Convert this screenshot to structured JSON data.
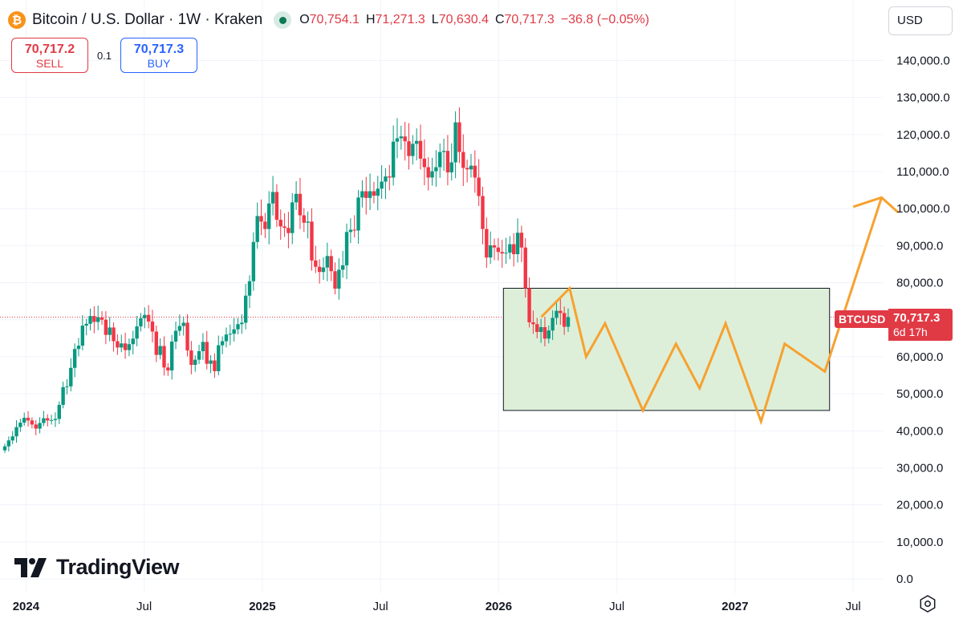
{
  "header": {
    "symbol_title": "Bitcoin / U.S. Dollar · 1W · Kraken",
    "btc_glyph": "₿",
    "ohlc": [
      {
        "label": "O",
        "value": "70,754.1"
      },
      {
        "label": "H",
        "value": "71,271.3"
      },
      {
        "label": "L",
        "value": "70,630.4"
      },
      {
        "label": "C",
        "value": "70,717.3"
      },
      {
        "label": "",
        "value": "−36.8 (−0.05%)"
      }
    ]
  },
  "trade": {
    "sell_price": "70,717.2",
    "sell_label": "SELL",
    "spread": "0.1",
    "buy_price": "70,717.3",
    "buy_label": "BUY"
  },
  "currency": "USD",
  "price_tag": {
    "symbol": "BTCUSD",
    "price": "70,717.3",
    "countdown": "6d 17h"
  },
  "branding": {
    "logo_text": "TradingView"
  },
  "colors": {
    "up": "#089981",
    "down": "#f23645",
    "projection": "#f7a12f",
    "range_box_fill": "#ddefd9",
    "last_price_line": "#e03a45"
  },
  "chart_data": {
    "type": "candlestick",
    "interval": "1W",
    "ylim": [
      0,
      145000
    ],
    "y_ticks": [
      "0.0",
      "10,000.0",
      "20,000.0",
      "30,000.0",
      "40,000.0",
      "50,000.0",
      "60,000.0",
      "70,000.0",
      "80,000.0",
      "90,000.0",
      "100,000.0",
      "110,000.0",
      "120,000.0",
      "130,000.0",
      "140,000.0"
    ],
    "x_ticks": [
      {
        "label": "2024",
        "pos": 2024.0,
        "year": true
      },
      {
        "label": "Jul",
        "pos": 2024.5,
        "year": false
      },
      {
        "label": "2025",
        "pos": 2025.0,
        "year": true
      },
      {
        "label": "Jul",
        "pos": 2025.5,
        "year": false
      },
      {
        "label": "2026",
        "pos": 2026.0,
        "year": true
      },
      {
        "label": "Jul",
        "pos": 2026.5,
        "year": false
      },
      {
        "label": "2027",
        "pos": 2027.0,
        "year": true
      },
      {
        "label": "Jul",
        "pos": 2027.5,
        "year": false
      }
    ],
    "xlim": [
      2023.89,
      2027.625
    ],
    "last_price": 70717.3,
    "candle_closes": [
      35800,
      37400,
      38500,
      41000,
      42200,
      43500,
      42800,
      41700,
      40600,
      42100,
      43400,
      42800,
      42900,
      43200,
      47000,
      51800,
      52000,
      57000,
      62100,
      63000,
      68400,
      68900,
      71000,
      69400,
      70600,
      70000,
      65900,
      67900,
      64200,
      62500,
      63600,
      61800,
      63400,
      64900,
      68200,
      70400,
      71300,
      69500,
      66800,
      60500,
      62900,
      57100,
      56300,
      64100,
      67000,
      68300,
      69200,
      61700,
      57800,
      59200,
      61500,
      64000,
      58100,
      59000,
      56100,
      63100,
      64200,
      66000,
      66200,
      67400,
      68800,
      69200,
      76500,
      80400,
      91000,
      98000,
      96500,
      94500,
      101400,
      104500,
      97000,
      95200,
      94800,
      93400,
      101700,
      104000,
      98200,
      96200,
      96500,
      86000,
      84300,
      82900,
      84100,
      87200,
      83100,
      78400,
      83500,
      84700,
      93700,
      94300,
      94100,
      103000,
      104700,
      102900,
      104700,
      103500,
      105400,
      107300,
      108700,
      108400,
      118100,
      119000,
      119500,
      118200,
      114200,
      117500,
      118300,
      113500,
      111200,
      108400,
      110100,
      111200,
      115300,
      115600,
      109800,
      112500,
      123300,
      115300,
      111000,
      110600,
      111600,
      108400,
      103400,
      94500,
      86800,
      90100,
      89500,
      88300,
      87900,
      88100,
      90400,
      87700,
      93500,
      89500,
      78500,
      69300,
      68800,
      66700,
      68000,
      64900,
      67100,
      70500,
      72400,
      71800,
      68100,
      70717.3
    ],
    "projection_path": [
      {
        "t": 2026.18,
        "v": 70717
      },
      {
        "t": 2026.3,
        "v": 78500
      },
      {
        "t": 2026.37,
        "v": 60000
      },
      {
        "t": 2026.45,
        "v": 69000
      },
      {
        "t": 2026.61,
        "v": 45500
      },
      {
        "t": 2026.75,
        "v": 63500
      },
      {
        "t": 2026.85,
        "v": 51500
      },
      {
        "t": 2026.96,
        "v": 69000
      },
      {
        "t": 2027.11,
        "v": 42500
      },
      {
        "t": 2027.21,
        "v": 63500
      },
      {
        "t": 2027.38,
        "v": 56000
      },
      {
        "t": 2027.62,
        "v": 103000
      }
    ],
    "projection_arrowhead": [
      {
        "t": 2027.5,
        "v": 100500
      },
      {
        "t": 2027.62,
        "v": 103000
      },
      {
        "t": 2027.69,
        "v": 99000
      }
    ],
    "range_box": {
      "t_start": 2026.02,
      "t_end": 2027.4,
      "v_low": 45500,
      "v_high": 78500
    }
  }
}
